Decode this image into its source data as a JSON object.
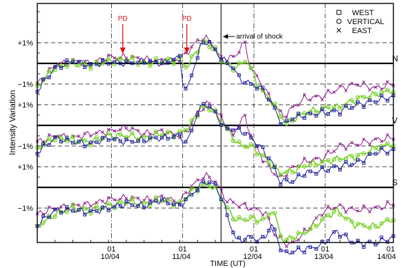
{
  "chart_data": {
    "type": "line",
    "xlabel": "TIME (UT)",
    "ylabel": "Intensity Variation",
    "x_tick_labels": [
      {
        "day": 10,
        "hour_label": "01",
        "date_label": "10/04"
      },
      {
        "day": 11,
        "hour_label": "01",
        "date_label": "11/04"
      },
      {
        "day": 12,
        "hour_label": "01",
        "date_label": "12/04"
      },
      {
        "day": 13,
        "hour_label": "01",
        "date_label": "13/04"
      },
      {
        "day": 14,
        "hour_label": "01",
        "date_label": "14/04"
      }
    ],
    "xlim_days": [
      9.0,
      14.0
    ],
    "ylim_percent": [
      -6.2,
      3.3
    ],
    "panels": [
      {
        "label": "N",
        "baseline": 0,
        "plus_label": "+1%",
        "minus_label": "−1%"
      },
      {
        "label": "V",
        "baseline": -3,
        "plus_label": "+1%",
        "minus_label": "−1%"
      },
      {
        "label": "S",
        "baseline": -6,
        "plus_label": "+1%",
        "minus_label": "−1%"
      }
    ],
    "annotations": [
      {
        "text": "PD",
        "day": 10.2,
        "color": "#e01010"
      },
      {
        "text": "PD",
        "day": 11.1,
        "color": "#e01010"
      },
      {
        "text": "arrival of shock",
        "day": 11.58
      }
    ],
    "legend": {
      "placement": "top-right",
      "items": [
        {
          "name": "WEST",
          "marker": "square",
          "color": "#1a1a9a"
        },
        {
          "name": "VERTICAL",
          "marker": "circle",
          "color": "#7ad22a"
        },
        {
          "name": "EAST",
          "marker": "x",
          "color": "#8a1a8a"
        }
      ]
    },
    "series_keypoints": {
      "N": {
        "WEST": [
          [
            9.0,
            -1.3
          ],
          [
            9.25,
            -0.2
          ],
          [
            9.5,
            0.1
          ],
          [
            9.75,
            -0.1
          ],
          [
            10.0,
            0.1
          ],
          [
            10.25,
            0.0
          ],
          [
            10.5,
            0.1
          ],
          [
            10.75,
            0.0
          ],
          [
            11.0,
            0.3
          ],
          [
            11.05,
            -1.0
          ],
          [
            11.1,
            -1.4
          ],
          [
            11.18,
            -0.4
          ],
          [
            11.3,
            0.9
          ],
          [
            11.4,
            1.1
          ],
          [
            11.5,
            0.6
          ],
          [
            11.6,
            0.2
          ],
          [
            11.75,
            -0.2
          ],
          [
            11.85,
            -0.8
          ],
          [
            12.0,
            -1.0
          ],
          [
            12.15,
            -1.2
          ],
          [
            12.3,
            -2.0
          ],
          [
            12.45,
            -3.0
          ],
          [
            12.55,
            -2.7
          ],
          [
            12.75,
            -2.5
          ],
          [
            13.0,
            -2.4
          ],
          [
            13.25,
            -2.3
          ],
          [
            13.5,
            -2.0
          ],
          [
            13.75,
            -1.8
          ],
          [
            14.0,
            -1.6
          ]
        ],
        "VERTICAL": [
          [
            9.0,
            -1.1
          ],
          [
            9.25,
            -0.2
          ],
          [
            9.5,
            0.0
          ],
          [
            9.75,
            -0.1
          ],
          [
            10.0,
            0.1
          ],
          [
            10.25,
            0.2
          ],
          [
            10.5,
            0.0
          ],
          [
            10.75,
            0.1
          ],
          [
            11.0,
            0.2
          ],
          [
            11.1,
            -0.2
          ],
          [
            11.25,
            0.7
          ],
          [
            11.35,
            1.1
          ],
          [
            11.5,
            0.6
          ],
          [
            11.6,
            0.1
          ],
          [
            11.75,
            -0.2
          ],
          [
            11.85,
            -0.1
          ],
          [
            11.95,
            0.2
          ],
          [
            12.0,
            -0.3
          ],
          [
            12.1,
            -1.1
          ],
          [
            12.3,
            -1.9
          ],
          [
            12.5,
            -2.9
          ],
          [
            12.75,
            -2.4
          ],
          [
            13.0,
            -2.2
          ],
          [
            13.25,
            -2.1
          ],
          [
            13.5,
            -1.7
          ],
          [
            13.75,
            -1.5
          ],
          [
            14.0,
            -1.3
          ]
        ],
        "EAST": [
          [
            9.0,
            -1.0
          ],
          [
            9.25,
            -0.1
          ],
          [
            9.5,
            0.1
          ],
          [
            9.75,
            0.0
          ],
          [
            10.0,
            0.3
          ],
          [
            10.25,
            0.3
          ],
          [
            10.5,
            0.2
          ],
          [
            10.75,
            0.1
          ],
          [
            11.0,
            0.2
          ],
          [
            11.1,
            0.5
          ],
          [
            11.22,
            1.0
          ],
          [
            11.35,
            1.3
          ],
          [
            11.5,
            0.7
          ],
          [
            11.6,
            0.1
          ],
          [
            11.8,
            0.4
          ],
          [
            11.9,
            1.1
          ],
          [
            12.0,
            -0.2
          ],
          [
            12.2,
            -1.3
          ],
          [
            12.45,
            -2.6
          ],
          [
            12.6,
            -2.1
          ],
          [
            12.75,
            -1.7
          ],
          [
            13.0,
            -1.6
          ],
          [
            13.25,
            -1.2
          ],
          [
            13.5,
            -1.0
          ],
          [
            13.75,
            -1.2
          ],
          [
            14.0,
            -1.0
          ]
        ]
      },
      "V": {
        "WEST": [
          [
            9.0,
            -4.3
          ],
          [
            9.25,
            -3.6
          ],
          [
            9.5,
            -3.8
          ],
          [
            9.75,
            -3.9
          ],
          [
            10.0,
            -3.6
          ],
          [
            10.25,
            -3.8
          ],
          [
            10.5,
            -3.7
          ],
          [
            10.75,
            -3.6
          ],
          [
            11.0,
            -3.5
          ],
          [
            11.1,
            -3.9
          ],
          [
            11.25,
            -2.4
          ],
          [
            11.35,
            -1.9
          ],
          [
            11.5,
            -2.4
          ],
          [
            11.62,
            -3.1
          ],
          [
            11.75,
            -3.2
          ],
          [
            11.9,
            -3.3
          ],
          [
            12.0,
            -3.6
          ],
          [
            12.15,
            -4.1
          ],
          [
            12.3,
            -4.8
          ],
          [
            12.4,
            -5.7
          ],
          [
            12.6,
            -5.7
          ],
          [
            12.75,
            -5.3
          ],
          [
            13.0,
            -5.2
          ],
          [
            13.2,
            -5.0
          ],
          [
            13.5,
            -4.8
          ],
          [
            13.75,
            -4.3
          ],
          [
            14.0,
            -4.2
          ]
        ],
        "VERTICAL": [
          [
            9.0,
            -4.1
          ],
          [
            9.25,
            -3.6
          ],
          [
            9.5,
            -3.7
          ],
          [
            9.75,
            -3.8
          ],
          [
            10.0,
            -3.5
          ],
          [
            10.25,
            -3.5
          ],
          [
            10.5,
            -3.6
          ],
          [
            10.75,
            -3.4
          ],
          [
            11.0,
            -3.4
          ],
          [
            11.15,
            -3.0
          ],
          [
            11.3,
            -2.1
          ],
          [
            11.45,
            -2.2
          ],
          [
            11.6,
            -2.9
          ],
          [
            11.75,
            -3.6
          ],
          [
            11.85,
            -4.0
          ],
          [
            12.0,
            -4.0
          ],
          [
            12.2,
            -4.6
          ],
          [
            12.4,
            -5.3
          ],
          [
            12.6,
            -5.2
          ],
          [
            12.8,
            -4.9
          ],
          [
            13.0,
            -4.8
          ],
          [
            13.25,
            -4.6
          ],
          [
            13.5,
            -4.5
          ],
          [
            13.75,
            -4.1
          ],
          [
            14.0,
            -3.9
          ]
        ],
        "EAST": [
          [
            9.0,
            -3.8
          ],
          [
            9.25,
            -3.5
          ],
          [
            9.5,
            -3.6
          ],
          [
            9.75,
            -3.4
          ],
          [
            10.0,
            -3.3
          ],
          [
            10.25,
            -3.1
          ],
          [
            10.5,
            -3.4
          ],
          [
            10.75,
            -3.3
          ],
          [
            11.0,
            -3.5
          ],
          [
            11.1,
            -3.3
          ],
          [
            11.25,
            -2.4
          ],
          [
            11.4,
            -1.9
          ],
          [
            11.6,
            -2.7
          ],
          [
            11.75,
            -3.5
          ],
          [
            11.9,
            -2.5
          ],
          [
            12.05,
            -3.9
          ],
          [
            12.2,
            -4.8
          ],
          [
            12.4,
            -5.6
          ],
          [
            12.6,
            -5.0
          ],
          [
            12.8,
            -4.7
          ],
          [
            13.0,
            -4.6
          ],
          [
            13.25,
            -4.0
          ],
          [
            13.5,
            -3.9
          ],
          [
            13.75,
            -3.7
          ],
          [
            14.0,
            -3.6
          ]
        ]
      },
      "S": {
        "WEST": [
          [
            9.0,
            -7.8
          ],
          [
            9.25,
            -7.1
          ],
          [
            9.5,
            -7.1
          ],
          [
            9.75,
            -7.2
          ],
          [
            10.0,
            -7.0
          ],
          [
            10.25,
            -6.8
          ],
          [
            10.5,
            -6.9
          ],
          [
            10.75,
            -6.6
          ],
          [
            11.0,
            -6.9
          ],
          [
            11.15,
            -6.4
          ],
          [
            11.35,
            -5.7
          ],
          [
            11.5,
            -5.9
          ],
          [
            11.6,
            -6.6
          ],
          [
            11.7,
            -7.7
          ],
          [
            11.8,
            -8.6
          ],
          [
            12.0,
            -8.4
          ],
          [
            12.15,
            -8.6
          ],
          [
            12.3,
            -7.8
          ],
          [
            12.45,
            -9.2
          ],
          [
            12.75,
            -9.0
          ],
          [
            13.0,
            -8.8
          ],
          [
            13.2,
            -8.1
          ],
          [
            13.45,
            -8.7
          ],
          [
            13.75,
            -8.7
          ],
          [
            14.0,
            -8.4
          ]
        ],
        "VERTICAL": [
          [
            9.0,
            -7.9
          ],
          [
            9.25,
            -7.3
          ],
          [
            9.5,
            -7.0
          ],
          [
            9.75,
            -7.1
          ],
          [
            10.0,
            -6.9
          ],
          [
            10.25,
            -6.7
          ],
          [
            10.5,
            -6.8
          ],
          [
            10.75,
            -6.6
          ],
          [
            11.0,
            -6.8
          ],
          [
            11.2,
            -6.1
          ],
          [
            11.4,
            -5.8
          ],
          [
            11.55,
            -6.3
          ],
          [
            11.7,
            -7.2
          ],
          [
            11.8,
            -7.6
          ],
          [
            12.0,
            -7.5
          ],
          [
            12.2,
            -7.6
          ],
          [
            12.3,
            -7.0
          ],
          [
            12.45,
            -8.6
          ],
          [
            12.75,
            -8.2
          ],
          [
            13.0,
            -7.6
          ],
          [
            13.2,
            -7.1
          ],
          [
            13.45,
            -7.8
          ],
          [
            13.75,
            -7.9
          ],
          [
            14.0,
            -7.5
          ]
        ],
        "EAST": [
          [
            9.0,
            -7.3
          ],
          [
            9.25,
            -7.0
          ],
          [
            9.5,
            -6.9
          ],
          [
            9.75,
            -6.8
          ],
          [
            10.0,
            -6.6
          ],
          [
            10.25,
            -6.5
          ],
          [
            10.5,
            -6.6
          ],
          [
            10.75,
            -6.5
          ],
          [
            11.0,
            -6.7
          ],
          [
            11.15,
            -6.0
          ],
          [
            11.35,
            -5.4
          ],
          [
            11.5,
            -5.7
          ],
          [
            11.65,
            -6.6
          ],
          [
            11.8,
            -6.8
          ],
          [
            12.0,
            -7.0
          ],
          [
            12.2,
            -7.2
          ],
          [
            12.35,
            -8.4
          ],
          [
            12.55,
            -8.8
          ],
          [
            12.75,
            -8.2
          ],
          [
            13.0,
            -7.2
          ],
          [
            13.2,
            -6.9
          ],
          [
            13.45,
            -7.1
          ],
          [
            13.75,
            -7.0
          ],
          [
            14.0,
            -6.8
          ]
        ]
      }
    }
  }
}
